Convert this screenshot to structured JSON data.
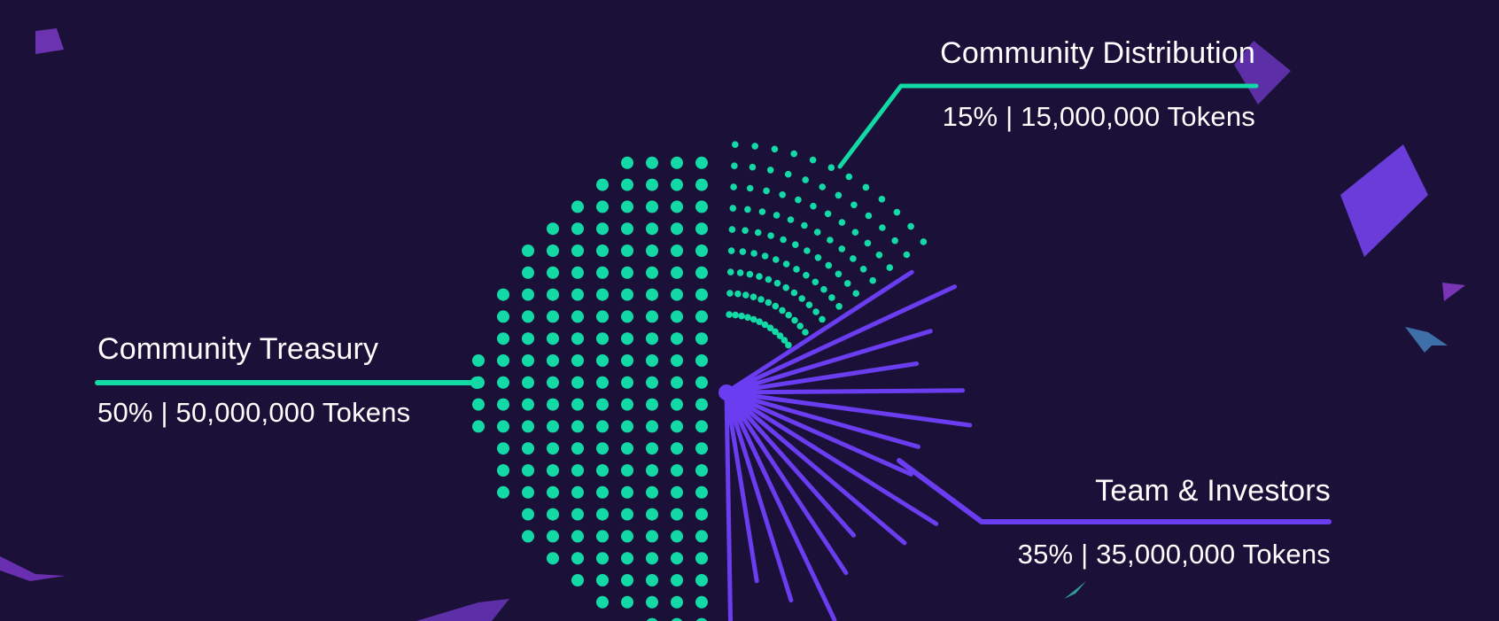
{
  "chart_data": {
    "type": "pie",
    "title": "",
    "slices": [
      {
        "label": "Community Treasury",
        "percent": 50,
        "tokens": 50000000,
        "detail": "50% | 50,000,000 Tokens",
        "color": "#13d9a6",
        "style": "large-dots"
      },
      {
        "label": "Community Distribution",
        "percent": 15,
        "tokens": 15000000,
        "detail": "15% | 15,000,000 Tokens",
        "color": "#13d9a6",
        "style": "small-dots"
      },
      {
        "label": "Team & Investors",
        "percent": 35,
        "tokens": 35000000,
        "detail": "35% | 35,000,000 Tokens",
        "color": "#6a3df0",
        "style": "rays"
      }
    ]
  },
  "colors": {
    "background": "#1b1138",
    "teal": "#13d9a6",
    "purple": "#6a3df0",
    "text": "#ffffff"
  }
}
